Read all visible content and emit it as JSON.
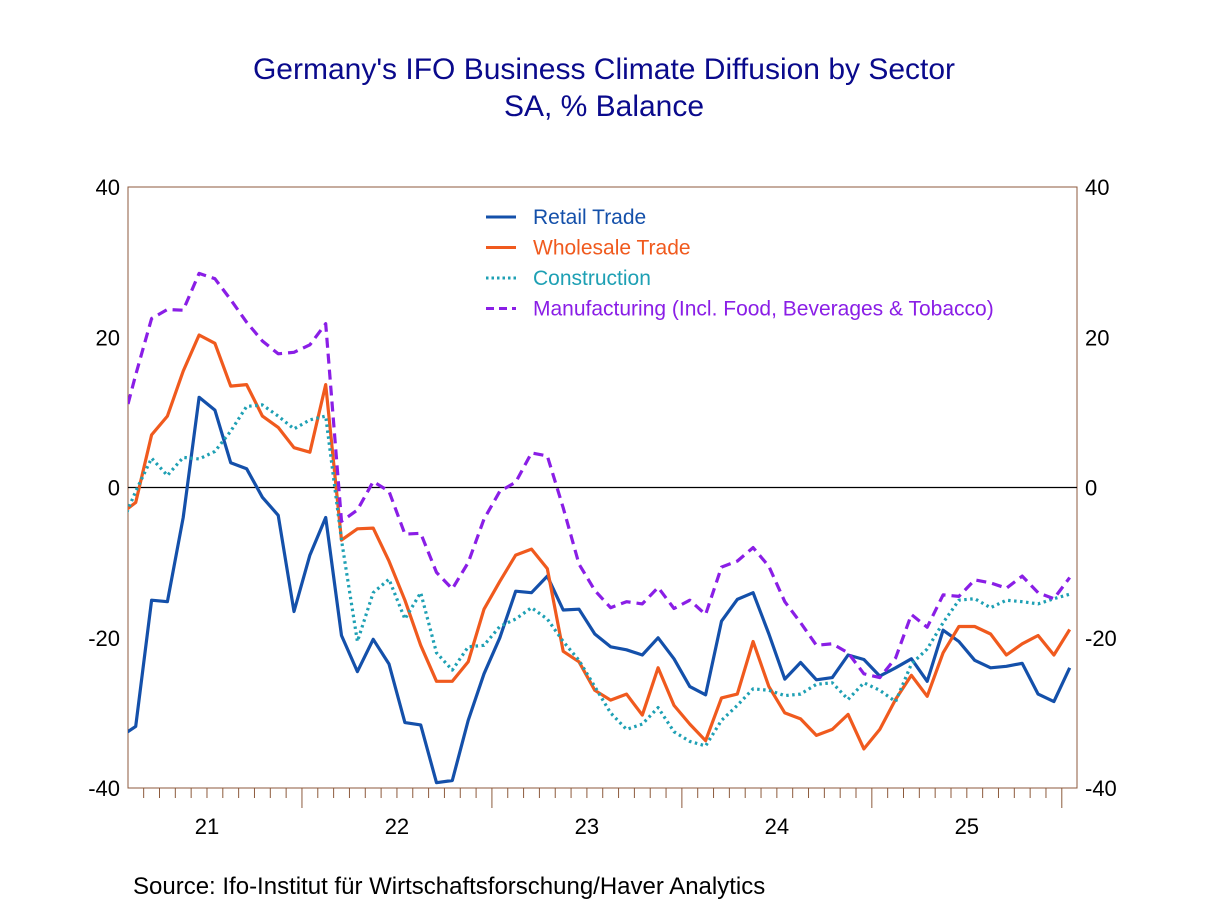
{
  "chart_data": {
    "type": "line",
    "title": "Germany's IFO Business Climate Diffusion by Sector",
    "subtitle": "SA, % Balance",
    "source": "Source:  Ifo-Institut für Wirtschaftsforschung/Haver Analytics",
    "ylim": [
      -40,
      40
    ],
    "yticks": [
      40,
      20,
      0,
      -20,
      -40
    ],
    "ytick_labels_right": [
      "40",
      "20",
      "0",
      "-20",
      "-40"
    ],
    "xtick_labels": [
      "21",
      "22",
      "23",
      "24",
      "25"
    ],
    "grid": false,
    "zero_line": true,
    "legend_placement": "top-center",
    "x": [
      "2021-01",
      "2021-02",
      "2021-03",
      "2021-04",
      "2021-05",
      "2021-06",
      "2021-07",
      "2021-08",
      "2021-09",
      "2021-10",
      "2021-11",
      "2021-12",
      "2022-01",
      "2022-02",
      "2022-03",
      "2022-04",
      "2022-05",
      "2022-06",
      "2022-07",
      "2022-08",
      "2022-09",
      "2022-10",
      "2022-11",
      "2022-12",
      "2023-01",
      "2023-02",
      "2023-03",
      "2023-04",
      "2023-05",
      "2023-06",
      "2023-07",
      "2023-08",
      "2023-09",
      "2023-10",
      "2023-11",
      "2023-12",
      "2024-01",
      "2024-02",
      "2024-03",
      "2024-04",
      "2024-05",
      "2024-06",
      "2024-07",
      "2024-08",
      "2024-09",
      "2024-10",
      "2024-11",
      "2024-12",
      "2025-01",
      "2025-02",
      "2025-03",
      "2025-04",
      "2025-05",
      "2025-06",
      "2025-07",
      "2025-08",
      "2025-09",
      "2025-10",
      "2025-11",
      "2025-12",
      "2026-01"
    ],
    "series": [
      {
        "name": "Retail Trade",
        "color": "#1450aa",
        "style": "solid",
        "values": [
          -33.2,
          -31.8,
          -15,
          -15.2,
          -4,
          12,
          10.3,
          3.3,
          2.5,
          -1.3,
          -3.7,
          -16.5,
          -9,
          -4,
          -19.7,
          -24.5,
          -20.2,
          -23.5,
          -31.3,
          -31.6,
          -39.3,
          -39,
          -31,
          -24.8,
          -20,
          -13.8,
          -14,
          -11.8,
          -16.3,
          -16.2,
          -19.5,
          -21.2,
          -21.6,
          -22.3,
          -20,
          -22.8,
          -26.5,
          -27.6,
          -17.8,
          -14.9,
          -14,
          -19.5,
          -25.5,
          -23.3,
          -25.6,
          -25.3,
          -22.3,
          -22.9,
          -25.1,
          -24,
          -22.8,
          -25.8,
          -19,
          -20.5,
          -23,
          -24,
          -23.8,
          -23.4,
          -27.5,
          -28.5,
          -24
        ]
      },
      {
        "name": "Wholesale Trade",
        "color": "#f05a1e",
        "style": "solid",
        "values": [
          -3.6,
          -2,
          7,
          9.5,
          15.5,
          20.3,
          19.2,
          13.5,
          13.7,
          9.5,
          8,
          5.3,
          4.7,
          13.7,
          -7,
          -5.5,
          -5.4,
          -9.8,
          -15,
          -21,
          -25.8,
          -25.8,
          -23.2,
          -16.2,
          -12.5,
          -9,
          -8.2,
          -10.8,
          -21.8,
          -23.2,
          -27,
          -28.3,
          -27.5,
          -30.3,
          -24,
          -29,
          -31.5,
          -33.7,
          -28,
          -27.5,
          -20.5,
          -26.5,
          -30,
          -30.8,
          -33,
          -32.2,
          -30.2,
          -34.8,
          -32.2,
          -28.2,
          -25,
          -27.8,
          -22,
          -18.5,
          -18.5,
          -19.5,
          -22.3,
          -20.8,
          -19.7,
          -22.3,
          -18.9
        ]
      },
      {
        "name": "Construction",
        "color": "#1ea0b4",
        "style": "dotted",
        "values": [
          -5.5,
          -0.5,
          3.9,
          1.6,
          4,
          3.8,
          4.8,
          7.5,
          10.8,
          11,
          9.5,
          7.8,
          9,
          9.5,
          -7,
          -20.5,
          -14,
          -12.2,
          -17.5,
          -14,
          -22,
          -24.3,
          -21.2,
          -21,
          -18.5,
          -17.5,
          -16,
          -17.5,
          -20.5,
          -23,
          -26.5,
          -30,
          -32.2,
          -31.5,
          -29.3,
          -32.5,
          -33.8,
          -34.4,
          -31,
          -29,
          -26.8,
          -27,
          -27.7,
          -27.5,
          -26.2,
          -26,
          -28.2,
          -26,
          -27,
          -28.5,
          -23.5,
          -21.5,
          -18,
          -15,
          -14.8,
          -16,
          -15,
          -15.2,
          -15.5,
          -14.8,
          -14.2
        ]
      },
      {
        "name": "Manufacturing (Incl. Food, Beverages & Tobacco)",
        "color": "#8a1ee6",
        "style": "dashed",
        "values": [
          7,
          15,
          22.5,
          23.7,
          23.6,
          28.5,
          27.8,
          25,
          22,
          19.5,
          17.8,
          18,
          19,
          21.8,
          -4.5,
          -3,
          0.8,
          -0.5,
          -6.2,
          -6.1,
          -11.3,
          -13.5,
          -10,
          -4.2,
          -0.5,
          0.7,
          4.6,
          4.2,
          -2.7,
          -10.2,
          -13.7,
          -16,
          -15.2,
          -15.5,
          -13.3,
          -16.1,
          -15,
          -16.9,
          -10.6,
          -9.8,
          -8,
          -10.5,
          -15.2,
          -18,
          -21,
          -20.8,
          -22,
          -24.8,
          -25.3,
          -22.7,
          -16.9,
          -18.6,
          -14.3,
          -14.5,
          -12.3,
          -12.7,
          -13.4,
          -11.8,
          -14,
          -14.8,
          -12
        ]
      }
    ],
    "colors": {
      "title": "#0a0a8c",
      "axis": "#8c5a3c",
      "zero_line": "#000000"
    }
  }
}
